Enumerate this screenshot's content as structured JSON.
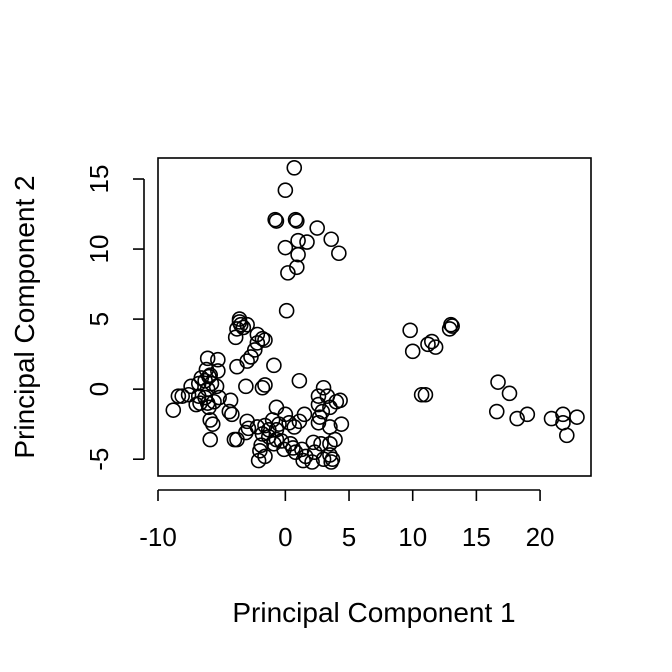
{
  "chart_data": {
    "type": "scatter",
    "title": "",
    "xlabel": "Principal Component 1",
    "ylabel": "Principal Component 2",
    "xlim": [
      -10,
      24
    ],
    "ylim": [
      -6.2,
      16.5
    ],
    "xticks": [
      -10,
      0,
      5,
      10,
      15,
      20
    ],
    "yticks": [
      -5,
      0,
      5,
      10,
      15
    ],
    "grid": false,
    "legend": "none",
    "marker": "open-circle",
    "colors": {
      "stroke": "#000000",
      "background": "#ffffff"
    },
    "points": [
      [
        0.7,
        15.8
      ],
      [
        0.0,
        14.2
      ],
      [
        -0.8,
        12.1
      ],
      [
        -0.7,
        12.0
      ],
      [
        0.8,
        12.1
      ],
      [
        0.9,
        12.0
      ],
      [
        2.5,
        11.5
      ],
      [
        1.0,
        10.6
      ],
      [
        3.6,
        10.7
      ],
      [
        1.7,
        10.5
      ],
      [
        0.0,
        10.1
      ],
      [
        4.2,
        9.7
      ],
      [
        1.0,
        9.6
      ],
      [
        0.9,
        8.7
      ],
      [
        0.2,
        8.3
      ],
      [
        0.1,
        5.6
      ],
      [
        -3.6,
        5.0
      ],
      [
        -3.6,
        4.8
      ],
      [
        -3.5,
        4.6
      ],
      [
        -3.0,
        4.6
      ],
      [
        -3.8,
        4.3
      ],
      [
        -3.3,
        4.4
      ],
      [
        -2.2,
        3.9
      ],
      [
        -1.8,
        3.6
      ],
      [
        -3.9,
        3.7
      ],
      [
        -2.2,
        3.3
      ],
      [
        -2.4,
        2.8
      ],
      [
        -1.6,
        3.5
      ],
      [
        -2.7,
        2.3
      ],
      [
        -3.0,
        2.0
      ],
      [
        -3.8,
        1.6
      ],
      [
        -0.9,
        1.7
      ],
      [
        -6.1,
        2.2
      ],
      [
        -5.3,
        2.1
      ],
      [
        -6.2,
        1.4
      ],
      [
        -5.3,
        1.3
      ],
      [
        -5.9,
        1.0
      ],
      [
        -6.0,
        0.9
      ],
      [
        -6.6,
        0.8
      ],
      [
        -6.3,
        0.6
      ],
      [
        -6.8,
        0.4
      ],
      [
        -5.8,
        0.4
      ],
      [
        -6.1,
        0.0
      ],
      [
        -7.4,
        0.2
      ],
      [
        -5.4,
        0.2
      ],
      [
        -3.1,
        0.2
      ],
      [
        -1.8,
        0.1
      ],
      [
        -1.6,
        0.3
      ],
      [
        1.1,
        0.6
      ],
      [
        -7.6,
        -0.4
      ],
      [
        -8.1,
        -0.5
      ],
      [
        -8.4,
        -0.5
      ],
      [
        -6.8,
        -0.5
      ],
      [
        -6.3,
        -0.6
      ],
      [
        -5.2,
        -0.6
      ],
      [
        -6.7,
        -1.0
      ],
      [
        -6.1,
        -1.0
      ],
      [
        -5.6,
        -0.9
      ],
      [
        -4.3,
        -0.8
      ],
      [
        -7.0,
        -1.1
      ],
      [
        -6.0,
        -1.3
      ],
      [
        -8.8,
        -1.5
      ],
      [
        -4.2,
        -1.8
      ],
      [
        -4.4,
        -1.6
      ],
      [
        -5.9,
        -2.2
      ],
      [
        -5.7,
        -2.5
      ],
      [
        -3.0,
        -2.3
      ],
      [
        -2.9,
        -2.8
      ],
      [
        -3.1,
        -3.1
      ],
      [
        -2.2,
        -2.7
      ],
      [
        -1.3,
        -2.9
      ],
      [
        -1.8,
        -3.2
      ],
      [
        -4.0,
        -3.6
      ],
      [
        -3.8,
        -3.6
      ],
      [
        -5.9,
        -3.6
      ],
      [
        -1.0,
        -2.2
      ],
      [
        -0.5,
        -2.5
      ],
      [
        -0.7,
        -2.9
      ],
      [
        0.0,
        -1.8
      ],
      [
        0.3,
        -2.4
      ],
      [
        -0.7,
        -1.3
      ],
      [
        -1.6,
        -2.6
      ],
      [
        -1.3,
        -3.4
      ],
      [
        -0.7,
        -3.6
      ],
      [
        -0.9,
        -3.9
      ],
      [
        -1.9,
        -4.0
      ],
      [
        -2.0,
        -4.4
      ],
      [
        -1.6,
        -4.8
      ],
      [
        -2.1,
        -5.1
      ],
      [
        -0.3,
        -3.7
      ],
      [
        0.4,
        -3.9
      ],
      [
        0.6,
        -4.2
      ],
      [
        -0.1,
        -4.3
      ],
      [
        0.8,
        -4.5
      ],
      [
        1.3,
        -4.3
      ],
      [
        1.6,
        -4.8
      ],
      [
        2.3,
        -4.5
      ],
      [
        1.4,
        -5.1
      ],
      [
        2.1,
        -5.2
      ],
      [
        3.0,
        -5.0
      ],
      [
        3.5,
        -4.7
      ],
      [
        3.7,
        -5.0
      ],
      [
        3.6,
        -5.2
      ],
      [
        2.2,
        -3.8
      ],
      [
        2.8,
        -3.9
      ],
      [
        3.5,
        -3.9
      ],
      [
        3.9,
        -3.6
      ],
      [
        2.6,
        -2.4
      ],
      [
        3.5,
        -2.7
      ],
      [
        2.9,
        -1.6
      ],
      [
        2.6,
        -1.1
      ],
      [
        3.5,
        -1.3
      ],
      [
        4.0,
        -0.9
      ],
      [
        3.3,
        -0.5
      ],
      [
        2.6,
        -0.5
      ],
      [
        3.0,
        0.1
      ],
      [
        4.3,
        -0.8
      ],
      [
        4.4,
        -2.5
      ],
      [
        1.5,
        -1.8
      ],
      [
        1.1,
        -2.3
      ],
      [
        0.7,
        -2.7
      ],
      [
        2.7,
        -2.0
      ],
      [
        9.8,
        4.2
      ],
      [
        10.0,
        2.7
      ],
      [
        11.2,
        3.2
      ],
      [
        11.5,
        3.4
      ],
      [
        11.8,
        3.0
      ],
      [
        13.0,
        4.6
      ],
      [
        13.1,
        4.5
      ],
      [
        12.9,
        4.3
      ],
      [
        10.7,
        -0.4
      ],
      [
        11.0,
        -0.4
      ],
      [
        16.7,
        0.5
      ],
      [
        17.6,
        -0.3
      ],
      [
        16.6,
        -1.6
      ],
      [
        18.2,
        -2.1
      ],
      [
        19.0,
        -1.8
      ],
      [
        20.9,
        -2.1
      ],
      [
        21.8,
        -1.8
      ],
      [
        21.8,
        -2.4
      ],
      [
        22.1,
        -3.3
      ],
      [
        22.9,
        -2.0
      ]
    ]
  }
}
